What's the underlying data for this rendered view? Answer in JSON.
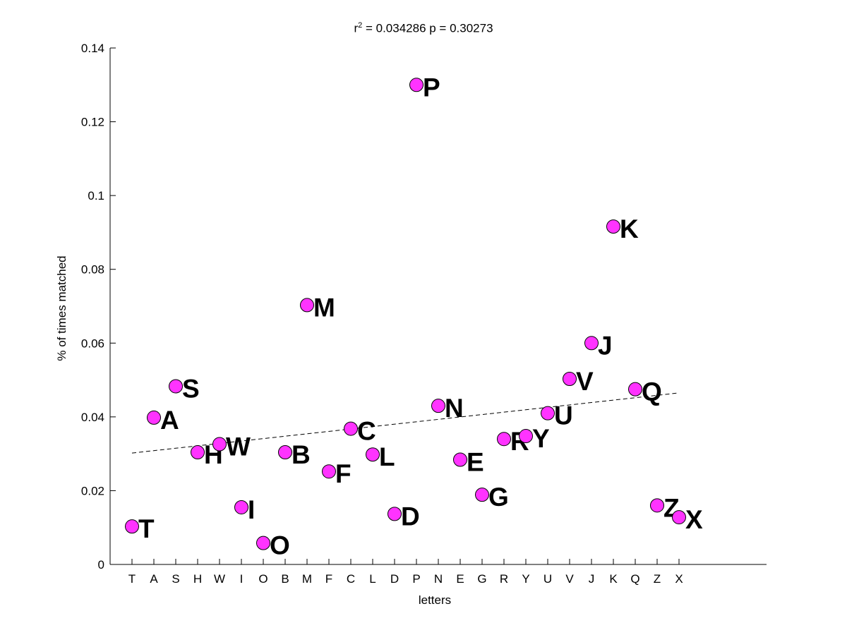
{
  "title_parts": {
    "r": "r",
    "exp": "2",
    "rest": " = 0.034286 p = 0.30273"
  },
  "chart_data": {
    "type": "scatter",
    "title": "r^2 = 0.034286 p = 0.30273",
    "xlabel": "letters",
    "ylabel": "% of times matched",
    "ylim": [
      0,
      0.14
    ],
    "yticks": [
      "0",
      "0.02",
      "0.04",
      "0.06",
      "0.08",
      "0.1",
      "0.12",
      "0.14"
    ],
    "categories": [
      "T",
      "A",
      "S",
      "H",
      "W",
      "I",
      "O",
      "B",
      "M",
      "F",
      "C",
      "L",
      "D",
      "P",
      "N",
      "E",
      "G",
      "R",
      "Y",
      "U",
      "V",
      "J",
      "K",
      "Q",
      "Z",
      "X"
    ],
    "values": [
      0.0103,
      0.0398,
      0.0483,
      0.0304,
      0.0326,
      0.0155,
      0.0058,
      0.0304,
      0.0703,
      0.0252,
      0.0368,
      0.0298,
      0.0137,
      0.13,
      0.043,
      0.0284,
      0.0189,
      0.034,
      0.0348,
      0.041,
      0.0503,
      0.06,
      0.0916,
      0.0475,
      0.016,
      0.0128
    ],
    "point_labels": [
      "T",
      "A",
      "S",
      "H",
      "W",
      "I",
      "O",
      "B",
      "M",
      "F",
      "C",
      "L",
      "D",
      "P",
      "N",
      "E",
      "G",
      "R",
      "Y",
      "U",
      "V",
      "J",
      "K",
      "Q",
      "Z",
      "X"
    ],
    "trendline": {
      "style": "dashed",
      "y_start": 0.0302,
      "y_end": 0.0465
    },
    "marker_color": "#ff33ff",
    "grid": false,
    "legend": "none"
  }
}
